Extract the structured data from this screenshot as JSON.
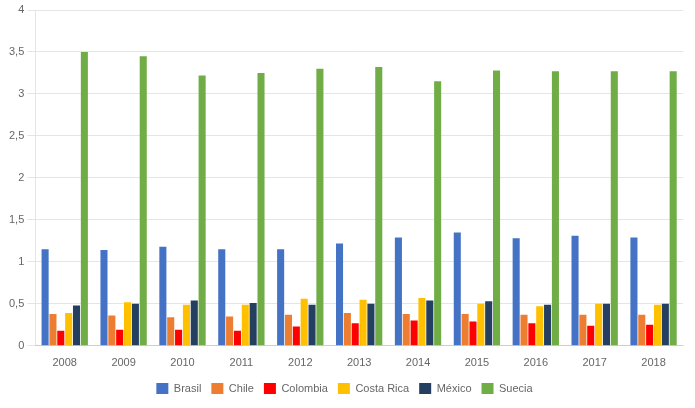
{
  "chart_data": {
    "type": "bar",
    "categories": [
      "2008",
      "2009",
      "2010",
      "2011",
      "2012",
      "2013",
      "2014",
      "2015",
      "2016",
      "2017",
      "2018"
    ],
    "series": [
      {
        "name": "Brasil",
        "color": "#4472C4",
        "values": [
          1.15,
          1.14,
          1.18,
          1.15,
          1.15,
          1.22,
          1.29,
          1.35,
          1.28,
          1.31,
          1.29
        ]
      },
      {
        "name": "Chile",
        "color": "#ED7D31",
        "values": [
          0.38,
          0.36,
          0.34,
          0.35,
          0.37,
          0.39,
          0.38,
          0.38,
          0.37,
          0.37,
          0.37
        ]
      },
      {
        "name": "Colombia",
        "color": "#FF0000",
        "values": [
          0.18,
          0.19,
          0.19,
          0.18,
          0.23,
          0.27,
          0.3,
          0.29,
          0.27,
          0.24,
          0.25
        ]
      },
      {
        "name": "Costa Rica",
        "color": "#FFC000",
        "values": [
          0.39,
          0.52,
          0.49,
          0.49,
          0.56,
          0.55,
          0.57,
          0.5,
          0.47,
          0.5,
          0.49
        ]
      },
      {
        "name": "México",
        "color": "#243F60",
        "values": [
          0.48,
          0.5,
          0.54,
          0.51,
          0.49,
          0.5,
          0.54,
          0.53,
          0.49,
          0.5,
          0.5
        ]
      },
      {
        "name": "Suecia",
        "color": "#70AD47",
        "values": [
          3.5,
          3.45,
          3.22,
          3.25,
          3.3,
          3.32,
          3.15,
          3.28,
          3.27,
          3.27,
          3.27
        ]
      }
    ],
    "ylim": [
      0,
      4
    ],
    "yticks": [
      0,
      {
        "value": 0.5,
        "label": "0,5"
      },
      1,
      {
        "value": 1.5,
        "label": "1,5"
      },
      2,
      {
        "value": 2.5,
        "label": "2,5"
      },
      3,
      {
        "value": 3.5,
        "label": "3,5"
      },
      4
    ],
    "grid": true,
    "legend": "bottom"
  }
}
